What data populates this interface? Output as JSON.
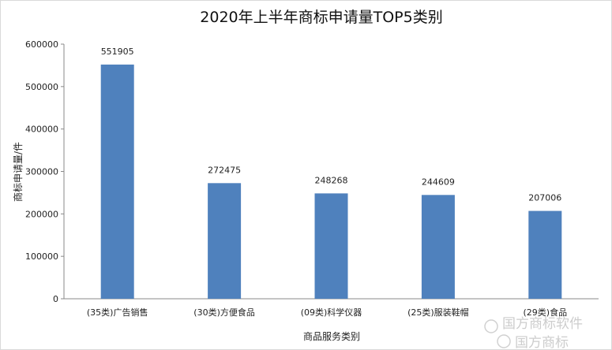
{
  "chart_data": {
    "type": "bar",
    "title": "2020年上半年商标申请量TOP5类别",
    "xlabel": "商品服务类别",
    "ylabel": "商标申请量/件",
    "categories": [
      "(35类)广告销售",
      "(30类)方便食品",
      "(09类)科学仪器",
      "(25类)服装鞋帽",
      "(29类)食品"
    ],
    "values": [
      551905,
      272475,
      248268,
      244609,
      207006
    ],
    "data_labels": [
      "551905",
      "272475",
      "248268",
      "244609",
      "207006"
    ],
    "ylim": [
      0,
      600000
    ],
    "yticks": [
      "0",
      "100000",
      "200000",
      "300000",
      "400000",
      "500000",
      "600000"
    ],
    "grid": false,
    "legend": "none",
    "bar_color": "#4f81bd"
  },
  "watermark": {
    "line1": "国方商标软件",
    "line2": "国方商标"
  }
}
